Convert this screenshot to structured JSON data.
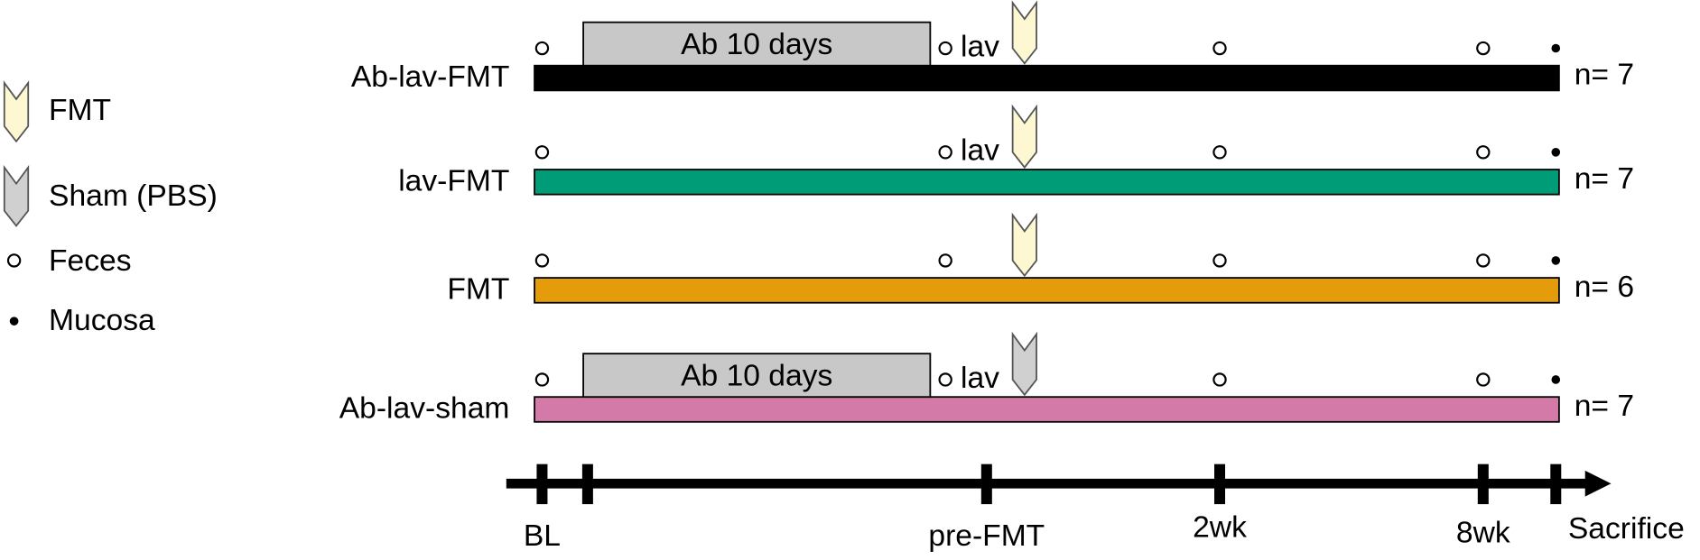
{
  "legend": [
    {
      "label": "FMT"
    },
    {
      "label": "Sham (PBS)"
    },
    {
      "label": "Feces"
    },
    {
      "label": "Mucosa"
    }
  ],
  "groups": [
    {
      "label": "Ab-lav-FMT",
      "n": "n= 7",
      "color": "#000000",
      "ab": "Ab 10 days",
      "lav": "lav"
    },
    {
      "label": "lav-FMT",
      "n": "n= 7",
      "color": "#009b77",
      "lav": "lav"
    },
    {
      "label": "FMT",
      "n": "n= 6",
      "color": "#e59c0a"
    },
    {
      "label": "Ab-lav-sham",
      "n": "n= 7",
      "color": "#d47aa8",
      "ab": "Ab 10 days",
      "lav": "lav"
    }
  ],
  "timeline": [
    "BL",
    "pre-FMT",
    "2wk",
    "8wk",
    "Sacrifice"
  ]
}
